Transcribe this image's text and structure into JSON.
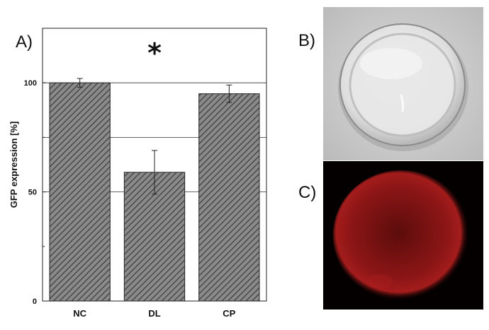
{
  "panels": {
    "a": "A)",
    "b": "B)",
    "c": "C)"
  },
  "chart_data": {
    "type": "bar",
    "categories": [
      "NC",
      "DL",
      "CP"
    ],
    "values": [
      100,
      59,
      95
    ],
    "errors": [
      2,
      10,
      4
    ],
    "ylabel": "GFP expression [%]",
    "ylim": [
      0,
      125
    ],
    "yticks": [
      0,
      50,
      100
    ],
    "ygrid": [
      50,
      75,
      100
    ],
    "annotation": "*",
    "bar_fill": "hatched-gray"
  },
  "colors": {
    "bar_fill": "#8a8a8a",
    "hatch": "#3a3a3a",
    "axis": "#222222",
    "photo_b_bg": "#c9c9c9",
    "photo_c_bg": "#050000",
    "glow": "#b01818"
  }
}
